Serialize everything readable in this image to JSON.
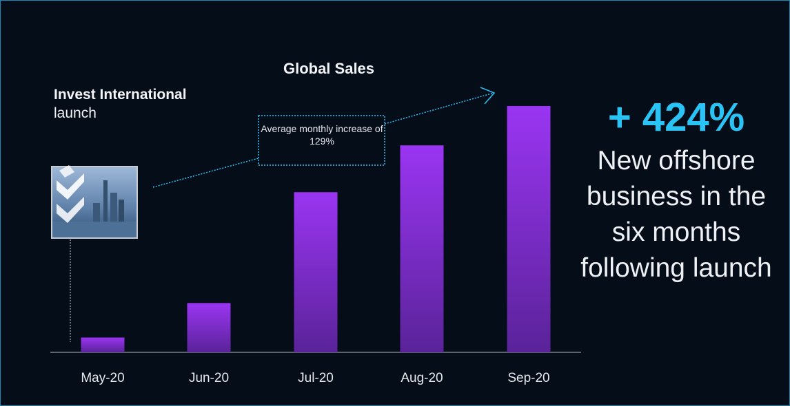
{
  "chart_data": {
    "type": "bar",
    "title": "Global Sales",
    "categories": [
      "May-20",
      "Jun-20",
      "Jul-20",
      "Aug-20",
      "Sep-20"
    ],
    "values": [
      6,
      20,
      65,
      84,
      100
    ],
    "ylim": [
      0,
      100
    ],
    "color": "#8b2be8",
    "launch_label_bold": "Invest International",
    "launch_label": "launch",
    "trend_note": "Average monthly increase of 129%",
    "headline": "+ 424%",
    "headline_text": "New offshore business in the six months following launch"
  }
}
